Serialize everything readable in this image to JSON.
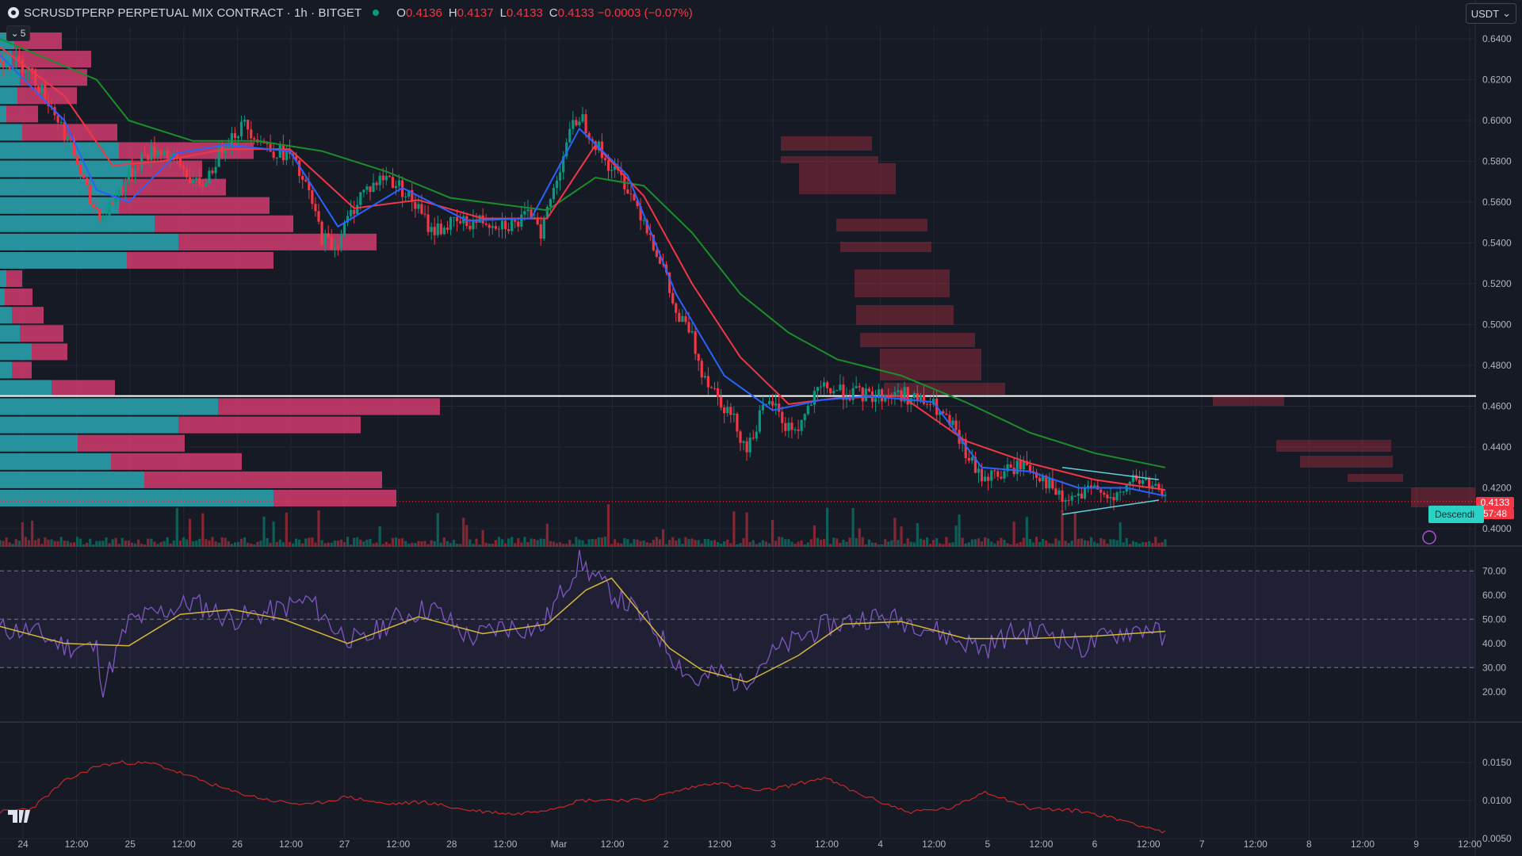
{
  "header": {
    "symbol": "SCRUSDTPERP PERPETUAL MIX CONTRACT · 1h · BITGET",
    "ohlc": [
      {
        "k": "O",
        "v": "0.4136"
      },
      {
        "k": "H",
        "v": "0.4137"
      },
      {
        "k": "L",
        "v": "0.4133"
      },
      {
        "k": "C",
        "v": "0.4133 −0.0003 (−0.07%)"
      }
    ],
    "status_color": "#089981"
  },
  "toolbar": {
    "collapse_label": "5",
    "currency_label": "USDT"
  },
  "last_price": {
    "value": "0.4133",
    "countdown": "57:48",
    "color": "#f23645"
  },
  "pattern_label": "Descendi",
  "colors": {
    "bg": "#161a25",
    "grid": "#232734",
    "up": "#089981",
    "down": "#f23645",
    "ema_fast": "#2962ff",
    "ema_mid": "#f23645",
    "ema_slow": "#1b8e2a",
    "rsi": "#7e57c2",
    "rsi_ma": "#d4b73a",
    "hv": "#c62828"
  },
  "chart_data": [
    {
      "type": "candlestick",
      "title": "",
      "x_ticks": [
        "24",
        "12:00",
        "25",
        "12:00",
        "26",
        "12:00",
        "27",
        "12:00",
        "28",
        "12:00",
        "Mar",
        "12:00",
        "2",
        "12:00",
        "3",
        "12:00",
        "4",
        "12:00",
        "5",
        "12:00",
        "6",
        "12:00",
        "7",
        "12:00",
        "8",
        "12:00",
        "9",
        "12:00"
      ],
      "y_ticks": [
        "0.6400",
        "0.6200",
        "0.6000",
        "0.5800",
        "0.5600",
        "0.5400",
        "0.5200",
        "0.5000",
        "0.4800",
        "0.4600",
        "0.4400",
        "0.4200",
        "0.4000"
      ],
      "ylim": [
        0.4,
        0.64
      ],
      "horizontal_line": 0.465,
      "last_close": 0.4133,
      "price_path": [
        [
          0,
          0.63
        ],
        [
          8,
          0.627
        ],
        [
          16,
          0.607
        ],
        [
          22,
          0.588
        ],
        [
          28,
          0.56
        ],
        [
          32,
          0.553
        ],
        [
          38,
          0.568
        ],
        [
          44,
          0.582
        ],
        [
          50,
          0.586
        ],
        [
          56,
          0.578
        ],
        [
          62,
          0.566
        ],
        [
          66,
          0.577
        ],
        [
          70,
          0.59
        ],
        [
          76,
          0.598
        ],
        [
          80,
          0.592
        ],
        [
          84,
          0.586
        ],
        [
          90,
          0.583
        ],
        [
          96,
          0.564
        ],
        [
          100,
          0.543
        ],
        [
          104,
          0.538
        ],
        [
          108,
          0.551
        ],
        [
          112,
          0.564
        ],
        [
          120,
          0.573
        ],
        [
          126,
          0.565
        ],
        [
          130,
          0.556
        ],
        [
          134,
          0.546
        ],
        [
          140,
          0.549
        ],
        [
          150,
          0.551
        ],
        [
          160,
          0.549
        ],
        [
          166,
          0.555
        ],
        [
          168,
          0.546
        ],
        [
          172,
          0.566
        ],
        [
          176,
          0.59
        ],
        [
          180,
          0.603
        ],
        [
          184,
          0.592
        ],
        [
          188,
          0.58
        ],
        [
          194,
          0.57
        ],
        [
          200,
          0.552
        ],
        [
          206,
          0.528
        ],
        [
          210,
          0.504
        ],
        [
          214,
          0.498
        ],
        [
          218,
          0.478
        ],
        [
          224,
          0.463
        ],
        [
          228,
          0.453
        ],
        [
          232,
          0.439
        ],
        [
          236,
          0.455
        ],
        [
          240,
          0.462
        ],
        [
          244,
          0.45
        ],
        [
          248,
          0.449
        ],
        [
          252,
          0.462
        ],
        [
          256,
          0.469
        ],
        [
          262,
          0.467
        ],
        [
          270,
          0.465
        ],
        [
          280,
          0.466
        ],
        [
          290,
          0.46
        ],
        [
          296,
          0.449
        ],
        [
          300,
          0.437
        ],
        [
          304,
          0.426
        ],
        [
          310,
          0.426
        ],
        [
          318,
          0.432
        ],
        [
          324,
          0.425
        ],
        [
          330,
          0.413
        ],
        [
          336,
          0.416
        ],
        [
          342,
          0.421
        ],
        [
          346,
          0.412
        ],
        [
          352,
          0.425
        ],
        [
          358,
          0.421
        ],
        [
          362,
          0.4133
        ]
      ],
      "ema_fast": [
        [
          0,
          0.632
        ],
        [
          20,
          0.6
        ],
        [
          30,
          0.566
        ],
        [
          40,
          0.56
        ],
        [
          55,
          0.584
        ],
        [
          70,
          0.588
        ],
        [
          90,
          0.585
        ],
        [
          105,
          0.548
        ],
        [
          125,
          0.567
        ],
        [
          145,
          0.551
        ],
        [
          165,
          0.552
        ],
        [
          180,
          0.596
        ],
        [
          195,
          0.573
        ],
        [
          210,
          0.515
        ],
        [
          225,
          0.475
        ],
        [
          240,
          0.458
        ],
        [
          255,
          0.463
        ],
        [
          270,
          0.465
        ],
        [
          290,
          0.462
        ],
        [
          305,
          0.43
        ],
        [
          320,
          0.428
        ],
        [
          335,
          0.42
        ],
        [
          350,
          0.42
        ],
        [
          362,
          0.416
        ]
      ],
      "ema_mid": [
        [
          0,
          0.636
        ],
        [
          20,
          0.612
        ],
        [
          35,
          0.578
        ],
        [
          50,
          0.58
        ],
        [
          70,
          0.586
        ],
        [
          90,
          0.586
        ],
        [
          110,
          0.557
        ],
        [
          130,
          0.561
        ],
        [
          150,
          0.552
        ],
        [
          170,
          0.552
        ],
        [
          185,
          0.588
        ],
        [
          200,
          0.563
        ],
        [
          215,
          0.52
        ],
        [
          230,
          0.484
        ],
        [
          245,
          0.461
        ],
        [
          260,
          0.464
        ],
        [
          280,
          0.465
        ],
        [
          300,
          0.443
        ],
        [
          320,
          0.432
        ],
        [
          340,
          0.424
        ],
        [
          362,
          0.419
        ]
      ],
      "ema_slow": [
        [
          0,
          0.64
        ],
        [
          30,
          0.62
        ],
        [
          40,
          0.6
        ],
        [
          60,
          0.59
        ],
        [
          80,
          0.59
        ],
        [
          100,
          0.585
        ],
        [
          120,
          0.575
        ],
        [
          140,
          0.562
        ],
        [
          170,
          0.556
        ],
        [
          185,
          0.572
        ],
        [
          200,
          0.568
        ],
        [
          215,
          0.545
        ],
        [
          230,
          0.515
        ],
        [
          245,
          0.496
        ],
        [
          260,
          0.483
        ],
        [
          280,
          0.475
        ],
        [
          300,
          0.462
        ],
        [
          320,
          0.447
        ],
        [
          340,
          0.437
        ],
        [
          362,
          0.43
        ]
      ]
    },
    {
      "type": "line",
      "title": "",
      "y_ticks": [
        "70.00",
        "60.00",
        "50.00",
        "40.00",
        "30.00",
        "20.00"
      ],
      "ylim": [
        15,
        75
      ],
      "bands": [
        30,
        50,
        70
      ],
      "rsi": [
        [
          0,
          46
        ],
        [
          10,
          45
        ],
        [
          20,
          39
        ],
        [
          30,
          38
        ],
        [
          32,
          22
        ],
        [
          40,
          49
        ],
        [
          60,
          57
        ],
        [
          72,
          50
        ],
        [
          84,
          53
        ],
        [
          96,
          58
        ],
        [
          104,
          46
        ],
        [
          112,
          40
        ],
        [
          122,
          50
        ],
        [
          134,
          55
        ],
        [
          146,
          42
        ],
        [
          156,
          47
        ],
        [
          168,
          46
        ],
        [
          180,
          74
        ],
        [
          188,
          63
        ],
        [
          196,
          55
        ],
        [
          204,
          45
        ],
        [
          210,
          33
        ],
        [
          216,
          24
        ],
        [
          224,
          28
        ],
        [
          230,
          23
        ],
        [
          238,
          34
        ],
        [
          248,
          42
        ],
        [
          256,
          47
        ],
        [
          270,
          51
        ],
        [
          284,
          49
        ],
        [
          296,
          42
        ],
        [
          306,
          38
        ],
        [
          314,
          44
        ],
        [
          326,
          45
        ],
        [
          336,
          38
        ],
        [
          346,
          44
        ],
        [
          358,
          47
        ],
        [
          362,
          40
        ]
      ],
      "rsi_ma": [
        [
          0,
          47
        ],
        [
          20,
          40
        ],
        [
          40,
          39
        ],
        [
          56,
          52
        ],
        [
          72,
          54
        ],
        [
          88,
          50
        ],
        [
          108,
          40
        ],
        [
          130,
          51
        ],
        [
          150,
          44
        ],
        [
          170,
          48
        ],
        [
          182,
          62
        ],
        [
          190,
          67
        ],
        [
          198,
          54
        ],
        [
          208,
          38
        ],
        [
          218,
          29
        ],
        [
          232,
          24
        ],
        [
          248,
          35
        ],
        [
          262,
          48
        ],
        [
          280,
          49
        ],
        [
          300,
          42
        ],
        [
          320,
          42
        ],
        [
          340,
          43
        ],
        [
          362,
          45
        ]
      ]
    },
    {
      "type": "line",
      "title": "",
      "y_ticks": [
        "0.0150",
        "0.0100",
        "0.0050"
      ],
      "ylim": [
        0.005,
        0.018
      ],
      "hv": [
        [
          0,
          0.0085
        ],
        [
          10,
          0.009
        ],
        [
          20,
          0.0125
        ],
        [
          30,
          0.0145
        ],
        [
          38,
          0.015
        ],
        [
          48,
          0.0148
        ],
        [
          60,
          0.013
        ],
        [
          72,
          0.0112
        ],
        [
          84,
          0.01
        ],
        [
          96,
          0.0094
        ],
        [
          108,
          0.0105
        ],
        [
          120,
          0.0095
        ],
        [
          132,
          0.0098
        ],
        [
          144,
          0.0088
        ],
        [
          160,
          0.0082
        ],
        [
          172,
          0.009
        ],
        [
          180,
          0.01
        ],
        [
          190,
          0.0101
        ],
        [
          200,
          0.01
        ],
        [
          210,
          0.0112
        ],
        [
          222,
          0.0124
        ],
        [
          236,
          0.0112
        ],
        [
          246,
          0.012
        ],
        [
          256,
          0.013
        ],
        [
          266,
          0.011
        ],
        [
          282,
          0.0085
        ],
        [
          296,
          0.009
        ],
        [
          306,
          0.0112
        ],
        [
          320,
          0.009
        ],
        [
          336,
          0.0086
        ],
        [
          350,
          0.0073
        ],
        [
          362,
          0.0058
        ]
      ]
    }
  ]
}
